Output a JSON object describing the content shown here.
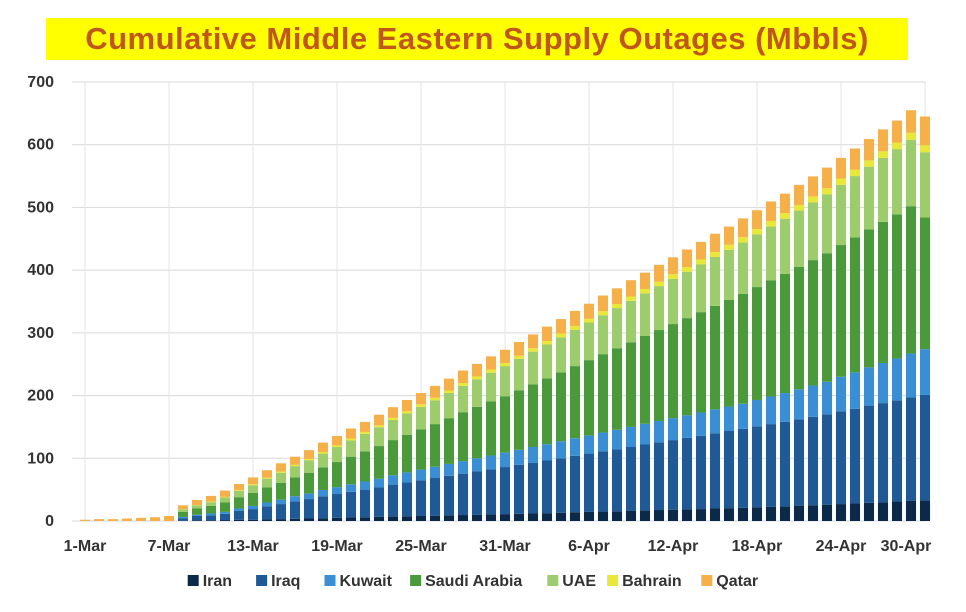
{
  "chart_data": {
    "type": "bar",
    "stacked": true,
    "title": "Cumulative Middle Eastern Supply Outages (Mbbls)",
    "ylim": [
      0,
      700
    ],
    "yticks": [
      0,
      100,
      200,
      300,
      400,
      500,
      600,
      700
    ],
    "x_tick_labels": [
      "1-Mar",
      "7-Mar",
      "13-Mar",
      "19-Mar",
      "25-Mar",
      "31-Mar",
      "6-Apr",
      "12-Apr",
      "18-Apr",
      "24-Apr",
      "30-Apr"
    ],
    "x_start": "1-Mar",
    "x_end": "30-Apr",
    "grid": true,
    "legend_position": "bottom",
    "series": [
      {
        "name": "Iran",
        "color": "#0b2a4a",
        "values": [
          0,
          0,
          0,
          0,
          0,
          0,
          0,
          0.5,
          1,
          1,
          1.5,
          2,
          2,
          2.5,
          3,
          3.5,
          4,
          4.5,
          5,
          5.5,
          6,
          6.5,
          7,
          7.5,
          8,
          8.5,
          9,
          9.5,
          10,
          10.5,
          11,
          11.5,
          12,
          12.5,
          13,
          14,
          14.5,
          15,
          15.5,
          16,
          17,
          17.5,
          18,
          18.5,
          19,
          20,
          20.5,
          21,
          22,
          22.5,
          23,
          24,
          25,
          26,
          27,
          28,
          29,
          30,
          31,
          32,
          33
        ]
      },
      {
        "name": "Iraq",
        "color": "#1f5a96",
        "values": [
          0,
          0,
          0,
          0,
          0,
          0,
          0,
          4,
          7,
          8,
          10,
          14,
          17,
          21,
          24,
          28,
          31,
          35,
          38,
          41,
          44,
          47,
          51,
          54,
          57,
          60,
          63,
          66,
          69,
          72,
          75,
          78,
          81,
          84,
          87,
          90,
          93,
          96,
          99,
          102,
          105,
          108,
          111,
          114,
          117,
          120,
          123,
          126,
          129,
          132,
          135,
          138,
          141,
          144,
          148,
          151,
          155,
          158,
          161,
          165,
          168
        ]
      },
      {
        "name": "Kuwait",
        "color": "#3a8fd4",
        "values": [
          0,
          0,
          0,
          0,
          0,
          0,
          0,
          2,
          2,
          3,
          3,
          4,
          5,
          6,
          7,
          8,
          9,
          10,
          11,
          12,
          13,
          14,
          15,
          16,
          17,
          18,
          19,
          20,
          21,
          22,
          23,
          24,
          25,
          26,
          27,
          28,
          29,
          30,
          31,
          32,
          33,
          34,
          35,
          36,
          37,
          38,
          39,
          40,
          42,
          44,
          46,
          48,
          50,
          52,
          55,
          58,
          61,
          64,
          67,
          70,
          73
        ]
      },
      {
        "name": "Saudi Arabia",
        "color": "#4a9a3c",
        "values": [
          0,
          0,
          0,
          0,
          0,
          0,
          0,
          8,
          10,
          12,
          15,
          18,
          21,
          24,
          27,
          30,
          33,
          36,
          40,
          44,
          48,
          52,
          56,
          60,
          64,
          68,
          73,
          78,
          82,
          86,
          90,
          95,
          100,
          105,
          110,
          115,
          120,
          125,
          130,
          135,
          140,
          145,
          150,
          155,
          160,
          165,
          170,
          175,
          180,
          185,
          190,
          195,
          200,
          205,
          210,
          215,
          220,
          225,
          230,
          235,
          210
        ]
      },
      {
        "name": "UAE",
        "color": "#9ccc6b",
        "values": [
          0,
          0,
          0,
          0,
          0,
          0,
          0,
          4,
          5,
          6,
          8,
          10,
          12,
          14,
          16,
          18,
          20,
          22,
          24,
          26,
          28,
          30,
          32,
          34,
          36,
          38,
          40,
          42,
          44,
          46,
          48,
          50,
          52,
          54,
          56,
          58,
          60,
          62,
          64,
          66,
          68,
          70,
          72,
          74,
          76,
          78,
          80,
          82,
          84,
          86,
          88,
          90,
          92,
          94,
          96,
          98,
          100,
          102,
          104,
          106,
          104
        ]
      },
      {
        "name": "Bahrain",
        "color": "#e8e83a",
        "values": [
          0,
          0,
          0,
          0,
          0,
          0,
          0,
          0.5,
          0.5,
          1,
          1,
          1,
          1.5,
          1.5,
          2,
          2,
          2,
          2.5,
          2.5,
          3,
          3,
          3,
          3.5,
          3.5,
          4,
          4,
          4,
          4.5,
          4.5,
          5,
          5,
          5,
          5.5,
          5.5,
          6,
          6,
          6,
          6.5,
          6.5,
          7,
          7,
          7,
          7.5,
          7.5,
          8,
          8,
          8,
          8.5,
          8.5,
          9,
          9,
          9,
          9.5,
          9.5,
          10,
          10,
          10,
          10.5,
          10.5,
          11,
          11
        ]
      },
      {
        "name": "Qatar",
        "color": "#f5b04a",
        "values": [
          2,
          3,
          3,
          4,
          5,
          6,
          8,
          6,
          8,
          9,
          10,
          10,
          11,
          12,
          13,
          13,
          14,
          15,
          15,
          16,
          16,
          17,
          17,
          18,
          18,
          19,
          19,
          20,
          20,
          21,
          21,
          22,
          22,
          23,
          23,
          24,
          24,
          25,
          25,
          26,
          26,
          27,
          27,
          28,
          28,
          29,
          29,
          30,
          30,
          31,
          31,
          32,
          32,
          33,
          33,
          34,
          34,
          35,
          35,
          36,
          46
        ]
      }
    ]
  }
}
